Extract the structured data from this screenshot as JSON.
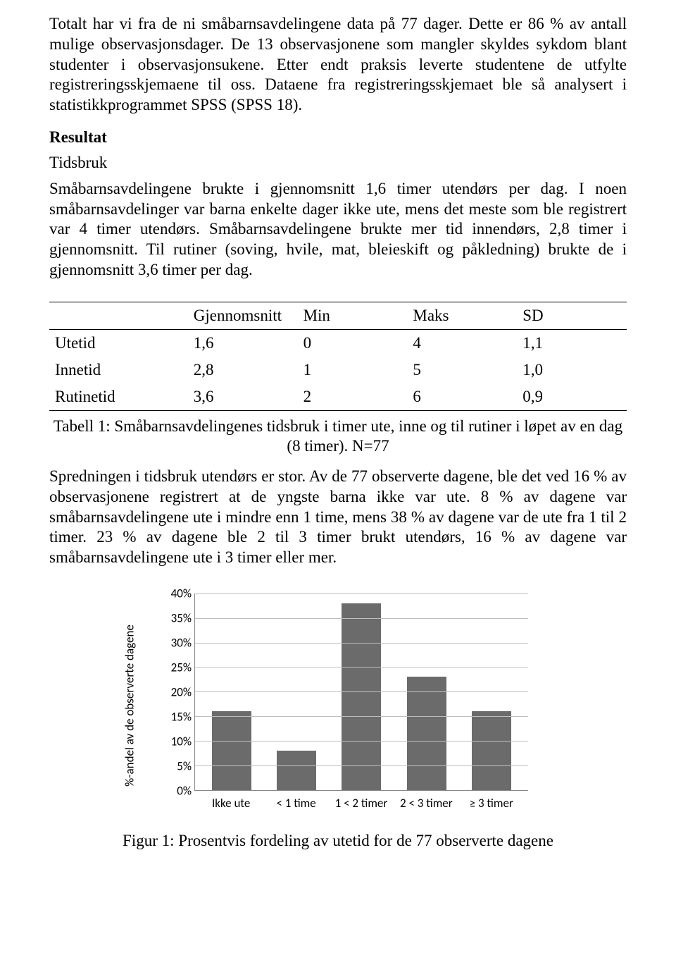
{
  "para1": "Totalt har vi fra de ni småbarnsavdelingene data på 77 dager. Dette er 86 % av antall mulige observasjonsdager. De 13 observasjonene som mangler skyldes sykdom blant studenter i observasjonsukene. Etter endt praksis leverte studentene de utfylte registreringsskjemaene til oss. Dataene fra registreringsskjemaet ble så analysert i statistikkprogrammet SPSS (SPSS 18).",
  "heading_resultat": "Resultat",
  "subheading_tidsbruk": "Tidsbruk",
  "para2": "Småbarnsavdelingene brukte i gjennomsnitt 1,6 timer utendørs per dag. I noen småbarnsavdelinger var barna enkelte dager ikke ute, mens det meste som ble registrert var 4 timer utendørs. Småbarnsavdelingene brukte mer tid innendørs, 2,8 timer i gjennomsnitt. Til rutiner (soving, hvile, mat, bleieskift og påkledning) brukte de i gjennomsnitt 3,6 timer per dag.",
  "table": {
    "columns": [
      "",
      "Gjennomsnitt",
      "Min",
      "Maks",
      "SD"
    ],
    "rows": [
      [
        "Utetid",
        "1,6",
        "0",
        "4",
        "1,1"
      ],
      [
        "Innetid",
        "2,8",
        "1",
        "5",
        "1,0"
      ],
      [
        "Rutinetid",
        "3,6",
        "2",
        "6",
        "0,9"
      ]
    ]
  },
  "table_caption": "Tabell 1: Småbarnsavdelingenes tidsbruk i timer ute, inne og til rutiner i løpet av en dag (8 timer). N=77",
  "para3": "Spredningen i tidsbruk utendørs er stor. Av de 77 observerte dagene, ble det ved 16 % av observasjonene registrert at de yngste barna ikke var ute. 8 % av dagene var småbarnsavdelingene ute i mindre enn 1 time, mens 38 % av dagene var de ute fra 1 til 2 timer. 23 % av dagene ble 2 til 3 timer brukt utendørs, 16 % av dagene var småbarnsavdelingene ute i 3 timer eller mer.",
  "chart": {
    "type": "bar",
    "ylabel": "%-andel av de observerte dagene",
    "ymax": 40,
    "ytick_step": 5,
    "ytick_labels": [
      "0%",
      "5%",
      "10%",
      "15%",
      "20%",
      "25%",
      "30%",
      "35%",
      "40%"
    ],
    "categories": [
      "Ikke ute",
      "< 1 time",
      "1 < 2 timer",
      "2 < 3 timer",
      "≥ 3 timer"
    ],
    "values": [
      16,
      8,
      38,
      23,
      16
    ],
    "bar_color": "#6b6b6b",
    "grid_color": "#bfbfbf",
    "axis_color": "#888888",
    "background_color": "#ffffff",
    "label_font": "Calibri",
    "label_fontsize": 17
  },
  "figure_caption": "Figur 1: Prosentvis fordeling av utetid for de 77 observerte dagene"
}
